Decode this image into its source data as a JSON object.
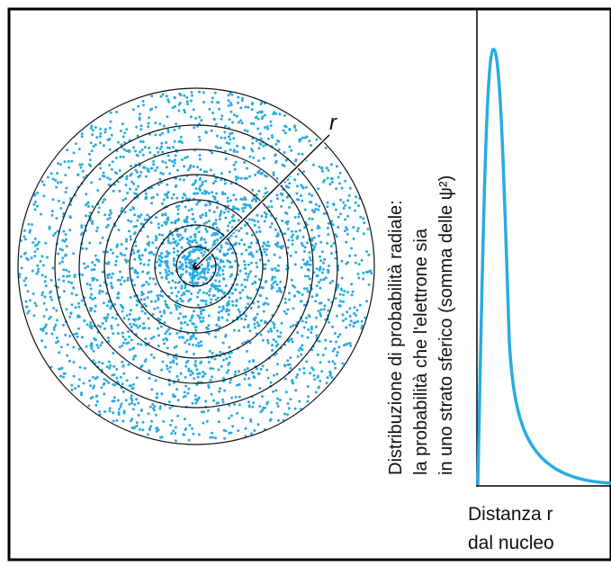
{
  "diagram": {
    "radius_label": "r",
    "y_label": [
      "Distribuzione di probabilità radiale:",
      "la probabilità che l'elettrone sia",
      "in uno strato sferico (somma delle ψ²)"
    ],
    "x_label": [
      "Distanza r",
      "dal nucleo"
    ]
  }
}
